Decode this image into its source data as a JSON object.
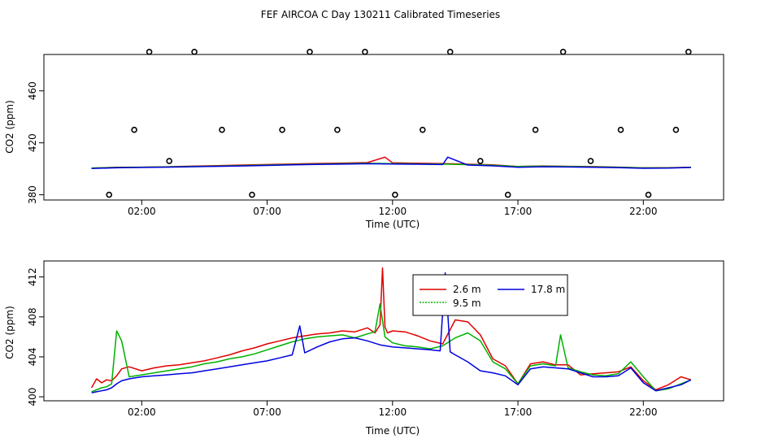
{
  "title": "FEF AIRCOA C  Day 130211  Calibrated Timeseries",
  "chart_data": [
    {
      "type": "line",
      "xlabel": "Time (UTC)",
      "ylabel": "CO2 (ppm)",
      "xlim": [
        -1.9,
        25.2
      ],
      "ylim": [
        376,
        488
      ],
      "x_ticks": [
        2,
        7,
        12,
        17,
        22
      ],
      "x_tick_labels": [
        "02:00",
        "07:00",
        "12:00",
        "17:00",
        "22:00"
      ],
      "y_ticks": [
        380,
        420,
        460
      ],
      "y_tick_labels": [
        "380",
        "420",
        "460"
      ],
      "series": [
        {
          "name": "2.6 m",
          "color": "#e00000",
          "x": [
            0,
            1,
            2,
            3,
            4,
            5,
            6,
            7,
            8,
            9,
            10,
            11,
            11.7,
            12,
            13,
            14,
            15,
            16,
            17,
            18,
            19,
            20,
            21,
            22,
            23,
            23.9
          ],
          "values": [
            400.5,
            401.2,
            401.3,
            401.6,
            402.0,
            402.4,
            402.9,
            403.3,
            403.7,
            404.1,
            404.4,
            404.8,
            409,
            404.6,
            404.3,
            404.0,
            403.5,
            403.0,
            401.8,
            402.2,
            401.9,
            401.7,
            401.3,
            400.8,
            400.9,
            401.2
          ]
        },
        {
          "name": "9.5 m",
          "color": "#00b000",
          "x": [
            0,
            1,
            2,
            3,
            4,
            5,
            6,
            7,
            8,
            9,
            10,
            11,
            12,
            13,
            14,
            15,
            16,
            17,
            18,
            19,
            20,
            21,
            22,
            23,
            23.9
          ],
          "values": [
            400.5,
            401.0,
            401.2,
            401.5,
            401.8,
            402.1,
            402.5,
            402.9,
            403.3,
            403.6,
            403.9,
            404.2,
            404.0,
            403.8,
            403.6,
            403.2,
            402.7,
            401.8,
            402.0,
            401.8,
            401.5,
            401.2,
            400.7,
            400.7,
            401.1
          ]
        },
        {
          "name": "17.8 m",
          "color": "#0000e0",
          "x": [
            0,
            1,
            2,
            3,
            4,
            5,
            6,
            7,
            8,
            9,
            10,
            11,
            12,
            13,
            14,
            14.2,
            15,
            16,
            17,
            18,
            19,
            20,
            21,
            22,
            23,
            23.9
          ],
          "values": [
            400.3,
            400.8,
            401.0,
            401.3,
            401.6,
            401.9,
            402.2,
            402.6,
            403.0,
            403.4,
            403.6,
            403.9,
            403.7,
            403.5,
            403.3,
            409,
            402.9,
            402.3,
            401.2,
            401.6,
            401.4,
            401.2,
            400.9,
            400.4,
            400.5,
            401.0
          ]
        }
      ],
      "outliers": {
        "x": [
          0.7,
          1.7,
          2.3,
          3.1,
          4.1,
          5.2,
          6.4,
          7.6,
          8.7,
          9.8,
          10.9,
          12.1,
          13.2,
          14.3,
          15.5,
          16.6,
          17.7,
          18.8,
          19.9,
          21.1,
          22.2,
          23.3,
          23.8
        ],
        "y": [
          380,
          430,
          490,
          406,
          490,
          430,
          380,
          430,
          490,
          430,
          490,
          380,
          430,
          490,
          406,
          380,
          430,
          490,
          406,
          430,
          380,
          430,
          490
        ]
      }
    },
    {
      "type": "line",
      "xlabel": "Time (UTC)",
      "ylabel": "CO2 (ppm)",
      "xlim": [
        -1.9,
        25.2
      ],
      "ylim": [
        399.6,
        413.6
      ],
      "x_ticks": [
        2,
        7,
        12,
        17,
        22
      ],
      "x_tick_labels": [
        "02:00",
        "07:00",
        "12:00",
        "17:00",
        "22:00"
      ],
      "y_ticks": [
        400,
        404,
        408,
        412
      ],
      "y_tick_labels": [
        "400",
        "404",
        "408",
        "412"
      ],
      "legend": {
        "position": "top-center",
        "entries": [
          "2.6 m",
          "17.8 m",
          "9.5 m"
        ]
      },
      "series": [
        {
          "name": "2.6 m",
          "color": "#e00000",
          "x": [
            0,
            0.2,
            0.4,
            0.6,
            0.8,
            1.0,
            1.2,
            1.5,
            2.0,
            2.5,
            3.0,
            3.5,
            4.0,
            4.5,
            5.0,
            5.5,
            6.0,
            6.5,
            7.0,
            7.5,
            8.0,
            8.5,
            9.0,
            9.5,
            10.0,
            10.5,
            11.0,
            11.3,
            11.5,
            11.6,
            11.7,
            11.8,
            12.0,
            12.5,
            13.0,
            13.5,
            14.0,
            14.5,
            15.0,
            15.5,
            16.0,
            16.5,
            17.0,
            17.5,
            18.0,
            18.5,
            19.0,
            19.5,
            20.0,
            20.5,
            21.0,
            21.5,
            22.0,
            22.5,
            23.0,
            23.5,
            23.9
          ],
          "values": [
            400.9,
            401.8,
            401.4,
            401.7,
            401.6,
            402.1,
            402.8,
            403.0,
            402.6,
            402.9,
            403.1,
            403.2,
            403.4,
            403.6,
            403.9,
            404.2,
            404.6,
            404.9,
            405.3,
            405.6,
            405.9,
            406.1,
            406.3,
            406.4,
            406.6,
            406.5,
            406.9,
            406.4,
            407.2,
            412.9,
            407.0,
            406.4,
            406.6,
            406.5,
            406.1,
            405.6,
            405.3,
            407.7,
            407.5,
            406.2,
            403.8,
            403.1,
            401.3,
            403.3,
            403.5,
            403.2,
            403.2,
            402.2,
            402.3,
            402.4,
            402.5,
            403.0,
            401.6,
            400.7,
            401.2,
            402.0,
            401.7
          ]
        },
        {
          "name": "9.5 m",
          "color": "#00b000",
          "x": [
            0,
            0.2,
            0.4,
            0.6,
            0.8,
            1.0,
            1.2,
            1.5,
            2.0,
            2.5,
            3.0,
            3.5,
            4.0,
            4.5,
            5.0,
            5.5,
            6.0,
            6.5,
            7.0,
            7.5,
            8.0,
            8.5,
            9.0,
            9.5,
            10.0,
            10.5,
            11.0,
            11.3,
            11.5,
            11.7,
            12.0,
            12.5,
            13.0,
            13.5,
            14.0,
            14.5,
            15.0,
            15.5,
            16.0,
            16.5,
            17.0,
            17.5,
            18.0,
            18.5,
            18.7,
            19.0,
            19.5,
            20.0,
            20.5,
            21.0,
            21.5,
            22.0,
            22.5,
            23.0,
            23.5,
            23.9
          ],
          "values": [
            400.5,
            400.7,
            400.9,
            401.0,
            401.3,
            406.6,
            405.6,
            402.0,
            402.2,
            402.4,
            402.6,
            402.8,
            403.0,
            403.3,
            403.5,
            403.8,
            404.0,
            404.3,
            404.7,
            405.1,
            405.5,
            405.8,
            406.0,
            406.1,
            406.2,
            405.9,
            406.3,
            406.5,
            409.3,
            406.0,
            405.4,
            405.1,
            405.0,
            404.8,
            405.1,
            405.9,
            406.4,
            405.6,
            403.5,
            402.8,
            401.3,
            403.1,
            403.3,
            403.1,
            406.2,
            402.9,
            402.5,
            402.2,
            402.1,
            402.3,
            403.5,
            402.0,
            400.6,
            400.8,
            401.3,
            401.7
          ]
        },
        {
          "name": "17.8 m",
          "color": "#0000e0",
          "x": [
            0,
            0.2,
            0.4,
            0.6,
            0.8,
            1.0,
            1.2,
            1.5,
            2.0,
            2.5,
            3.0,
            3.5,
            4.0,
            4.5,
            5.0,
            5.5,
            6.0,
            6.5,
            7.0,
            7.5,
            8.0,
            8.3,
            8.5,
            9.0,
            9.5,
            10.0,
            10.5,
            11.0,
            11.5,
            12.0,
            12.5,
            13.0,
            13.5,
            13.9,
            14.1,
            14.3,
            14.5,
            15.0,
            15.5,
            16.0,
            16.5,
            17.0,
            17.5,
            18.0,
            18.5,
            19.0,
            19.5,
            20.0,
            20.5,
            21.0,
            21.5,
            22.0,
            22.5,
            23.0,
            23.5,
            23.9
          ],
          "values": [
            400.4,
            400.5,
            400.6,
            400.7,
            400.9,
            401.3,
            401.6,
            401.8,
            402.0,
            402.1,
            402.2,
            402.3,
            402.4,
            402.6,
            402.8,
            403.0,
            403.2,
            403.4,
            403.6,
            403.9,
            404.2,
            407.1,
            404.4,
            405.0,
            405.5,
            405.8,
            405.9,
            405.6,
            405.2,
            405.0,
            404.9,
            404.8,
            404.7,
            404.6,
            412.4,
            404.5,
            404.2,
            403.5,
            402.6,
            402.4,
            402.1,
            401.2,
            402.8,
            403.0,
            402.9,
            402.8,
            402.4,
            402.0,
            402.0,
            402.1,
            402.9,
            401.4,
            400.6,
            400.9,
            401.2,
            401.7
          ]
        }
      ]
    }
  ]
}
